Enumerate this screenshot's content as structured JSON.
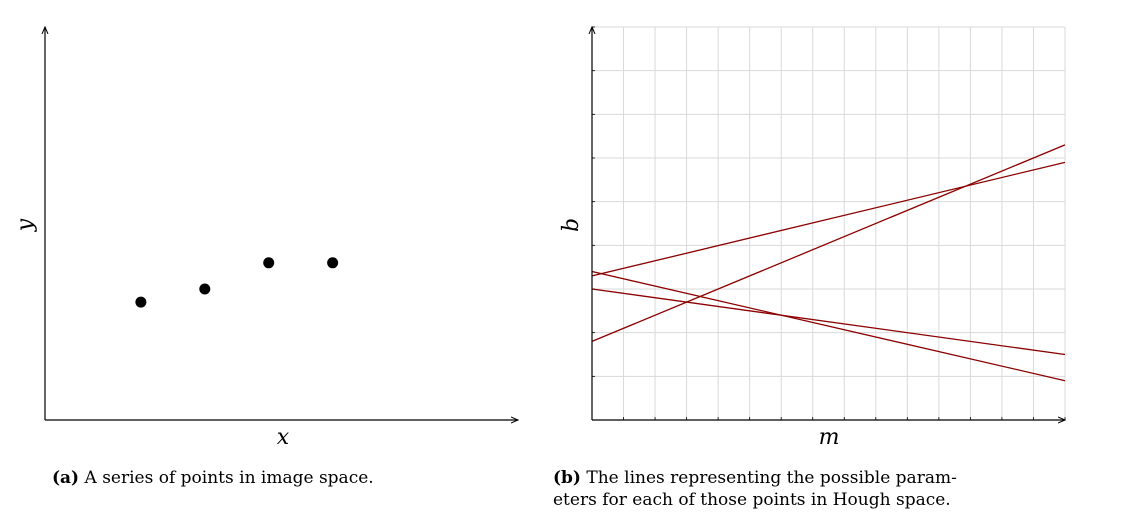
{
  "chart_data": [
    {
      "type": "scatter",
      "panel": "a",
      "xlabel": "x",
      "ylabel": "y",
      "xlim": [
        0,
        7.4
      ],
      "ylim": [
        0,
        6.0
      ],
      "grid": false,
      "points": [
        {
          "x": 1.5,
          "y": 1.8
        },
        {
          "x": 2.5,
          "y": 2.0
        },
        {
          "x": 3.5,
          "y": 2.4
        },
        {
          "x": 4.5,
          "y": 2.4
        }
      ],
      "caption_tag": "(a)",
      "caption_text": "A series of points in image space."
    },
    {
      "type": "line",
      "panel": "b",
      "xlabel": "m",
      "ylabel": "b",
      "xlim": [
        0,
        15
      ],
      "ylim": [
        0,
        9
      ],
      "grid": true,
      "line_color": "#8b0000",
      "grid_color": "#d9d9d9",
      "series": [
        {
          "x": [
            0,
            15
          ],
          "y": [
            3.3,
            5.9
          ]
        },
        {
          "x": [
            0,
            15
          ],
          "y": [
            1.8,
            6.3
          ]
        },
        {
          "x": [
            0,
            15
          ],
          "y": [
            3.0,
            1.5
          ]
        },
        {
          "x": [
            0,
            15
          ],
          "y": [
            3.4,
            0.9
          ]
        }
      ],
      "caption_tag": "(b)",
      "caption_text_line1": "The lines representing the possible param-",
      "caption_text_line2": "eters for each of those points in Hough space."
    }
  ]
}
